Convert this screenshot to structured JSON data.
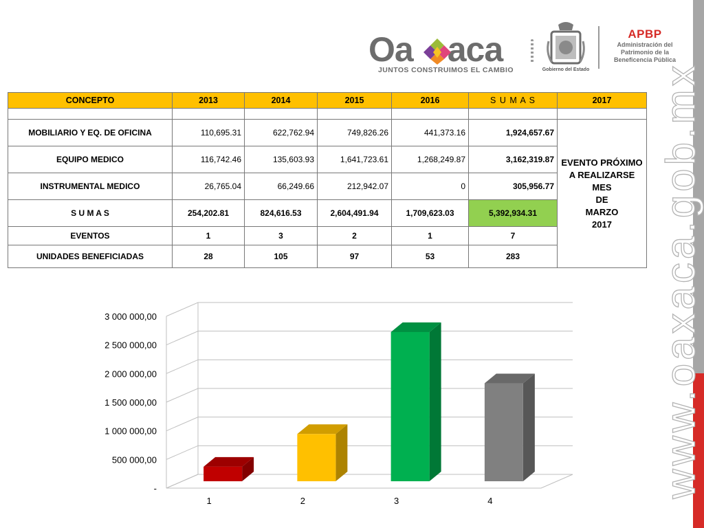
{
  "header": {
    "logo_word_left": "Oa",
    "logo_word_right": "aca",
    "tagline": "JUNTOS CONSTRUIMOS EL CAMBIO",
    "seal_caption": "Gobierno del Estado",
    "apbp": {
      "title": "APBP",
      "lines": [
        "Administración del",
        "Patrimonio de la",
        "Beneficencia Pública"
      ]
    }
  },
  "watermark": "www.oaxaca.gob.mx",
  "table": {
    "headers": [
      "CONCEPTO",
      "2013",
      "2014",
      "2015",
      "2016",
      "S U M A S",
      "2017"
    ],
    "rows": [
      {
        "concepto": "MOBILIARIO  Y EQ. DE OFICINA",
        "v2013": "110,695.31",
        "v2014": "622,762.94",
        "v2015": "749,826.26",
        "v2016": "441,373.16",
        "sumas": "1,924,657.67"
      },
      {
        "concepto": "EQUIPO MEDICO",
        "v2013": "116,742.46",
        "v2014": "135,603.93",
        "v2015": "1,641,723.61",
        "v2016": "1,268,249.87",
        "sumas": "3,162,319.87"
      },
      {
        "concepto": "INSTRUMENTAL MEDICO",
        "v2013": "26,765.04",
        "v2014": "66,249.66",
        "v2015": "212,942.07",
        "v2016": "0",
        "sumas": "305,956.77"
      },
      {
        "concepto": "S U M A S",
        "v2013": "254,202.81",
        "v2014": "824,616.53",
        "v2015": "2,604,491.94",
        "v2016": "1,709,623.03",
        "sumas": "5,392,934.31"
      },
      {
        "concepto": "EVENTOS",
        "v2013": "1",
        "v2014": "3",
        "v2015": "2",
        "v2016": "1",
        "sumas": "7"
      },
      {
        "concepto": "UNIDADES BENEFICIADAS",
        "v2013": "28",
        "v2014": "105",
        "v2015": "97",
        "v2016": "53",
        "sumas": "283"
      }
    ],
    "event_note": [
      "EVENTO PRÓXIMO",
      "A REALIZARSE  MES",
      "DE",
      "MARZO",
      "2017"
    ]
  },
  "colors": {
    "header_fill": "#ffc000",
    "total_highlight": "#92d050",
    "accent_red": "#d62b27"
  },
  "chart_data": {
    "type": "bar",
    "style": "3d-column",
    "categories": [
      "1",
      "2",
      "3",
      "4"
    ],
    "values": [
      254202.81,
      824616.53,
      2604491.94,
      1709623.03
    ],
    "colors": [
      "#c00000",
      "#ffc000",
      "#00b050",
      "#808080"
    ],
    "ylim": [
      0,
      3000000
    ],
    "yticks": [
      0,
      500000,
      1000000,
      1500000,
      2000000,
      2500000,
      3000000
    ],
    "ytick_labels": [
      "-",
      "500 000,00",
      "1 000 000,00",
      "1 500 000,00",
      "2 000 000,00",
      "2 500 000,00",
      "3 000 000,00"
    ],
    "grid": true,
    "legend": "none"
  }
}
